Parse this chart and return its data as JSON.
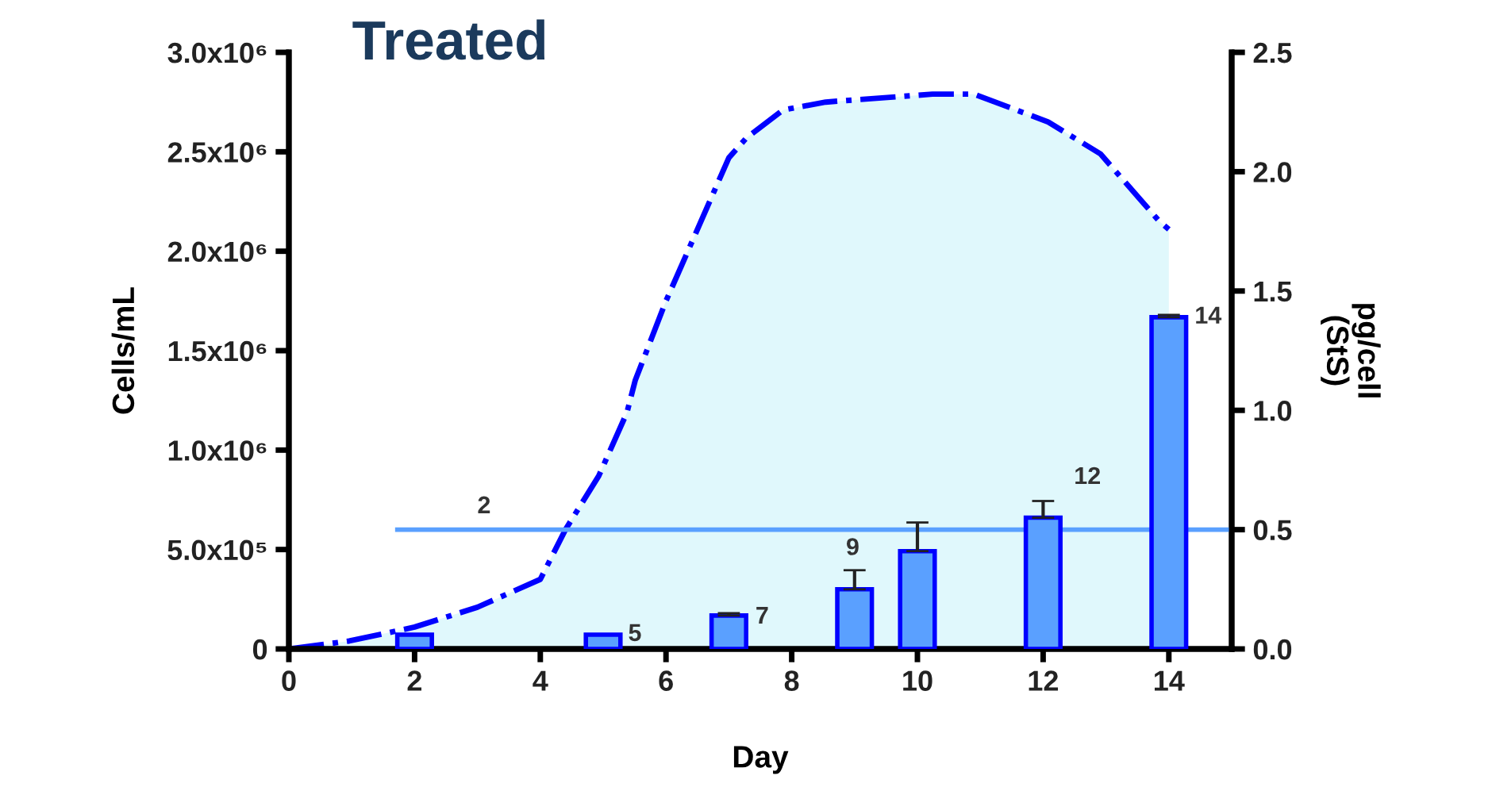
{
  "chart_data": {
    "type": "area",
    "title": "Treated",
    "xlabel": "Day",
    "ylabel": "Cells/mL",
    "y2label": "pg/cell\n(StS)",
    "xlim": [
      0,
      15
    ],
    "xticks": [
      0,
      2,
      4,
      6,
      8,
      10,
      12,
      14
    ],
    "ylim": [
      0,
      3000000
    ],
    "yticks": [
      0,
      {
        "value": 500000,
        "label": "5.0x10⁵"
      },
      {
        "value": 1000000,
        "label": "1.0x10⁶"
      },
      {
        "value": 1500000,
        "label": "1.5x10⁶"
      },
      {
        "value": 2000000,
        "label": "2.0x10⁶"
      },
      {
        "value": 2500000,
        "label": "2.5x10⁶"
      },
      {
        "value": 3000000,
        "label": "3.0x10⁶"
      }
    ],
    "y2lim": [
      0,
      2.5
    ],
    "y2ticks": [
      {
        "value": 0,
        "label": "0.0"
      },
      {
        "value": 0.5,
        "label": "0.5"
      },
      {
        "value": 1,
        "label": "1.0"
      },
      {
        "value": 1.5,
        "label": "1.5"
      },
      {
        "value": 2,
        "label": "2.0"
      },
      {
        "value": 2.5,
        "label": "2.5"
      }
    ],
    "series": [
      {
        "axis": "y",
        "color": "#0000ff",
        "line_style": "dashdot",
        "marker": "none",
        "x": [
          0,
          0.96,
          2,
          3,
          4,
          4.4,
          4.93,
          5.38,
          5.51,
          6,
          7,
          7.28,
          7.86,
          8.54,
          10.24,
          10.9,
          12.08,
          12.91,
          13.85,
          14
        ],
        "values": [
          0,
          40000,
          110000,
          210000,
          350000,
          600000,
          870000,
          1190000,
          1350000,
          1750000,
          2470000,
          2570000,
          2710000,
          2750000,
          2790000,
          2790000,
          2650000,
          2490000,
          2150000,
          2110000
        ]
      },
      {
        "type": "bar",
        "axis": "y2",
        "color": "#5aa0ff",
        "x": [
          2,
          5,
          7,
          9,
          10,
          12,
          14
        ],
        "values": [
          0.06,
          0.06,
          0.14,
          0.25,
          0.41,
          0.55,
          1.39
        ],
        "errors": [
          null,
          null,
          0.01,
          0.08,
          0.12,
          0.07,
          0.01
        ]
      }
    ],
    "annotations": [
      "2",
      "5",
      "7",
      "9",
      "12",
      "14"
    ],
    "ref_lines": [
      {
        "axis": "y2",
        "value": 0.5,
        "color": "#5aa0ff"
      }
    ],
    "grid": false,
    "legend": false
  }
}
